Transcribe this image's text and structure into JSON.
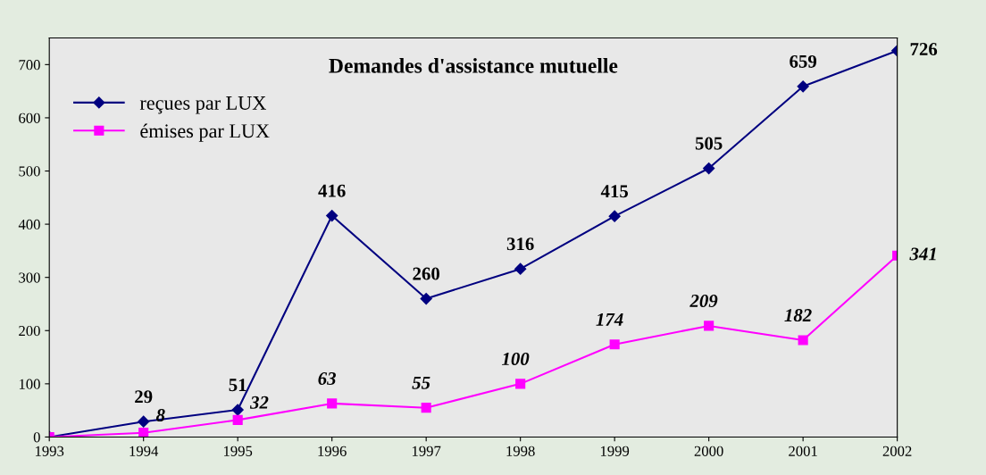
{
  "chart_data": {
    "type": "line",
    "title": "Demandes d'assistance mutuelle",
    "categories": [
      "1993",
      "1994",
      "1995",
      "1996",
      "1997",
      "1998",
      "1999",
      "2000",
      "2001",
      "2002"
    ],
    "series": [
      {
        "name": "reçues par LUX",
        "color": "#000080",
        "marker": "diamond",
        "values": [
          0,
          29,
          51,
          416,
          260,
          316,
          415,
          505,
          659,
          726
        ],
        "value_labels": [
          null,
          "29",
          "51",
          "416",
          "260",
          "316",
          "415",
          "505",
          "659",
          "726"
        ]
      },
      {
        "name": "émises par LUX",
        "color": "#ff00ff",
        "marker": "square",
        "values": [
          0,
          8,
          32,
          63,
          55,
          100,
          174,
          209,
          182,
          341
        ],
        "value_labels": [
          null,
          "8",
          "32",
          "63",
          "55",
          "100",
          "174",
          "209",
          "182",
          "341"
        ]
      }
    ],
    "ylim": [
      0,
      750
    ],
    "yticks": [
      0,
      100,
      200,
      300,
      400,
      500,
      600,
      700
    ],
    "grid": false,
    "legend": "top left"
  }
}
